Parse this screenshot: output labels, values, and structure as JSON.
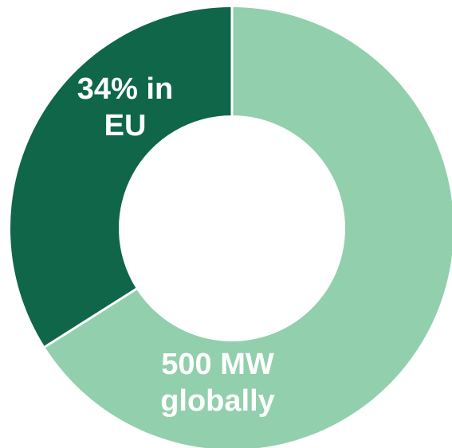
{
  "chart_data": {
    "type": "pie",
    "variant": "donut",
    "title": "",
    "slices": [
      {
        "value": 34,
        "unit": "%",
        "label_lines": [
          "34% in",
          "EU"
        ],
        "color": "#0f6649"
      },
      {
        "value": 66,
        "unit": "%",
        "label_lines": [
          "500 MW",
          "globally"
        ],
        "color": "#92cfad"
      }
    ],
    "total_label": "500 MW globally",
    "separator_color": "#ffffff",
    "start_direction": "top",
    "order": "counterclockwise-from-top for EU slice"
  }
}
